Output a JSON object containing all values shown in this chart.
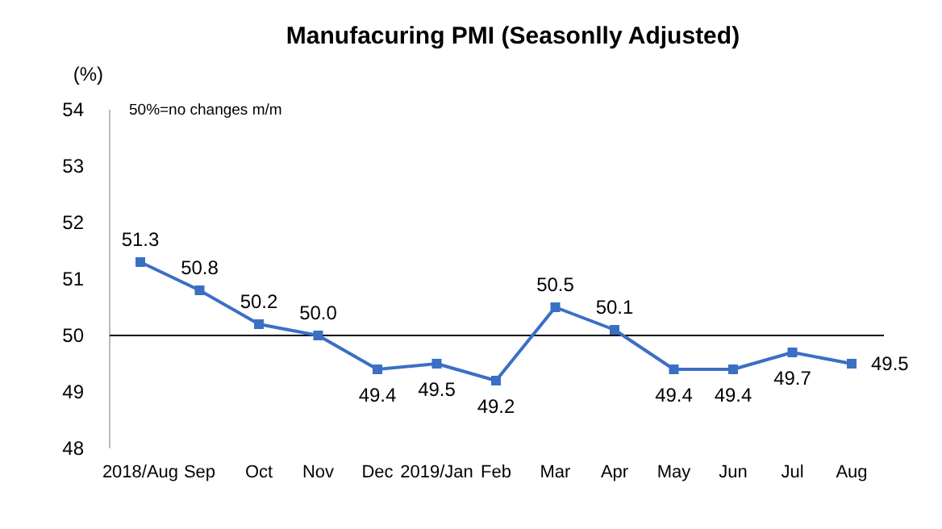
{
  "chart_data": {
    "type": "line",
    "title": "Manufacuring PMI (Seasonlly Adjusted)",
    "ylabel": "(%)",
    "annotations": [
      "50%=no changes  m/m"
    ],
    "categories": [
      "2018/Aug",
      "Sep",
      "Oct",
      "Nov",
      "Dec",
      "2019/Jan",
      "Feb",
      "Mar",
      "Apr",
      "May",
      "Jun",
      "Jul",
      "Aug"
    ],
    "series": [
      {
        "color": "#3b6fc4",
        "values": [
          51.3,
          50.8,
          50.2,
          50.0,
          49.4,
          49.5,
          49.2,
          50.5,
          50.1,
          49.4,
          49.4,
          49.7,
          49.5
        ]
      }
    ],
    "value_labels": [
      "51.3",
      "50.8",
      "50.2",
      "50.0",
      "49.4",
      "49.5",
      "49.2",
      "50.5",
      "50.1",
      "49.4",
      "49.4",
      "49.7",
      "49.5"
    ],
    "ylim": [
      48,
      54
    ],
    "yticks": [
      48,
      49,
      50,
      51,
      52,
      53,
      54
    ],
    "ref_lines": [
      {
        "axis": "y",
        "value": 50,
        "color": "#000000"
      }
    ],
    "marker": "square",
    "line_style": "solid",
    "grid": false
  }
}
